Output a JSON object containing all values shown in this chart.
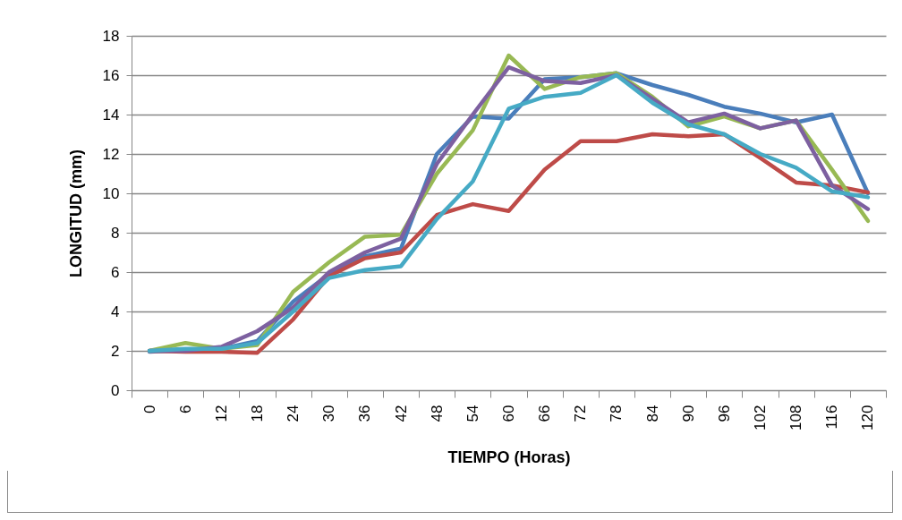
{
  "chart_data": {
    "type": "line",
    "xlabel": "TIEMPO (Horas)",
    "ylabel": "LONGITUD (mm)",
    "categories": [
      "0",
      "6",
      "12",
      "18",
      "24",
      "30",
      "36",
      "42",
      "48",
      "54",
      "60",
      "66",
      "72",
      "78",
      "84",
      "90",
      "96",
      "102",
      "108",
      "116",
      "120"
    ],
    "ylim": [
      0,
      18
    ],
    "yticks": [
      0,
      2,
      4,
      6,
      8,
      10,
      12,
      14,
      16,
      18
    ],
    "grid": "y",
    "legend": false,
    "marker": "none",
    "line_style": "solid",
    "series": [
      {
        "color": "#4a7ebb",
        "values": [
          1.95,
          2.05,
          2.1,
          2.5,
          4.5,
          5.9,
          6.8,
          7.2,
          12,
          13.9,
          13.8,
          15.8,
          15.9,
          16.1,
          15.5,
          15,
          14.4,
          14.05,
          13.6,
          14,
          10
        ]
      },
      {
        "color": "#be4b48",
        "values": [
          2,
          1.95,
          1.95,
          1.9,
          3.6,
          5.8,
          6.7,
          7,
          8.9,
          9.45,
          9.1,
          11.2,
          12.65,
          12.65,
          13,
          12.9,
          13,
          11.8,
          10.55,
          10.4,
          10.05
        ]
      },
      {
        "color": "#98b954",
        "values": [
          2,
          2.4,
          2.1,
          2.3,
          5,
          6.5,
          7.8,
          7.9,
          11,
          13.2,
          17,
          15.3,
          15.9,
          16.1,
          14.9,
          13.4,
          13.9,
          13.3,
          13.7,
          11.2,
          8.6
        ]
      },
      {
        "color": "#7d60a0",
        "values": [
          2,
          2,
          2.2,
          3,
          4.2,
          6,
          7,
          7.7,
          11.5,
          14,
          16.4,
          15.7,
          15.6,
          16,
          14.8,
          13.6,
          14.05,
          13.3,
          13.7,
          10.4,
          9.2
        ]
      },
      {
        "color": "#46aac5",
        "values": [
          2,
          2.1,
          2.1,
          2.4,
          4,
          5.7,
          6.1,
          6.3,
          8.7,
          10.6,
          14.3,
          14.9,
          15.1,
          16,
          14.6,
          13.5,
          13,
          12,
          11.3,
          10.1,
          9.8
        ]
      }
    ]
  }
}
